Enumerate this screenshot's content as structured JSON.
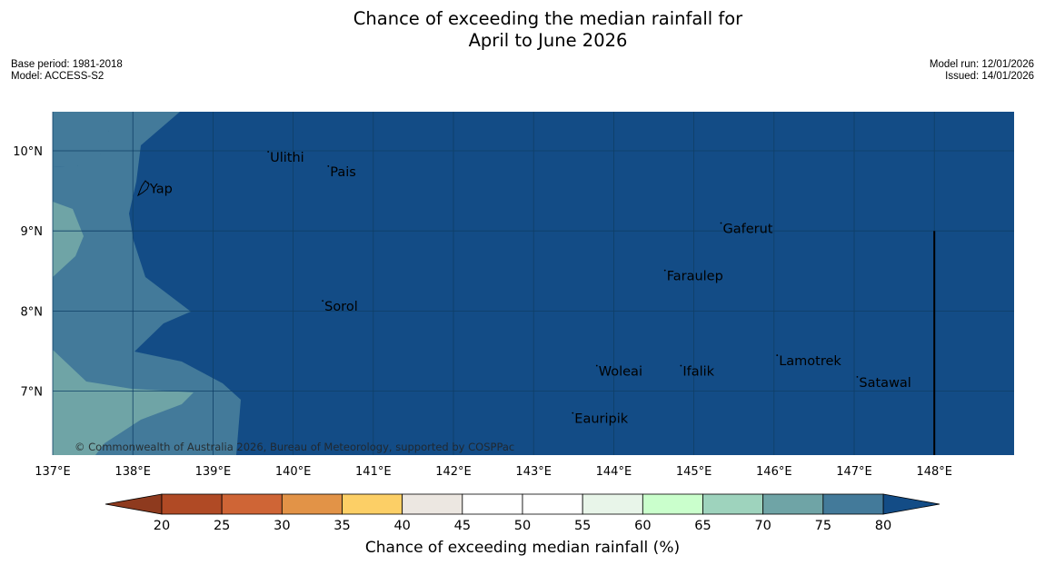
{
  "title_line1": "Chance of exceeding the median rainfall for",
  "title_line2": "April to June 2026",
  "base_period": "Base period: 1981-2018",
  "model": "Model: ACCESS-S2",
  "model_run": "Model run: 12/01/2026",
  "issued": "Issued: 14/01/2026",
  "copyright": "© Commonwealth of Australia 2026, Bureau of Meteorology, supported by COSPPac",
  "map": {
    "lon_range": [
      137,
      149
    ],
    "lat_range": [
      6.2,
      10.5
    ],
    "lon_ticks": [
      {
        "value": 137,
        "label": "137°E"
      },
      {
        "value": 138,
        "label": "138°E"
      },
      {
        "value": 139,
        "label": "139°E"
      },
      {
        "value": 140,
        "label": "140°E"
      },
      {
        "value": 141,
        "label": "141°E"
      },
      {
        "value": 142,
        "label": "142°E"
      },
      {
        "value": 143,
        "label": "143°E"
      },
      {
        "value": 144,
        "label": "144°E"
      },
      {
        "value": 145,
        "label": "145°E"
      },
      {
        "value": 146,
        "label": "146°E"
      },
      {
        "value": 147,
        "label": "147°E"
      },
      {
        "value": 148,
        "label": "148°E"
      }
    ],
    "lat_ticks": [
      {
        "value": 10,
        "label": "10°N"
      },
      {
        "value": 9,
        "label": "9°N"
      },
      {
        "value": 8,
        "label": "8°N"
      },
      {
        "value": 7,
        "label": "7°N"
      }
    ],
    "places": [
      {
        "name": "Ulithi",
        "lon": 139.7,
        "lat": 9.92
      },
      {
        "name": "Pais",
        "lon": 140.45,
        "lat": 9.74
      },
      {
        "name": "Yap",
        "lon": 138.2,
        "lat": 9.53
      },
      {
        "name": "Gaferut",
        "lon": 145.35,
        "lat": 9.03
      },
      {
        "name": "Faraulep",
        "lon": 144.65,
        "lat": 8.44
      },
      {
        "name": "Sorol",
        "lon": 140.38,
        "lat": 8.06
      },
      {
        "name": "Woleai",
        "lon": 143.8,
        "lat": 7.25
      },
      {
        "name": "Ifalik",
        "lon": 144.85,
        "lat": 7.25
      },
      {
        "name": "Lamotrek",
        "lon": 146.05,
        "lat": 7.38
      },
      {
        "name": "Satawal",
        "lon": 147.05,
        "lat": 7.11
      },
      {
        "name": "Eauripik",
        "lon": 143.5,
        "lat": 6.66
      }
    ]
  },
  "colorbar": {
    "label": "Chance of exceeding median rainfall (%)",
    "ticks": [
      "20",
      "25",
      "30",
      "35",
      "40",
      "45",
      "50",
      "55",
      "60",
      "65",
      "70",
      "75",
      "80"
    ],
    "colors": [
      "#b04a25",
      "#cf6536",
      "#e29347",
      "#fccf66",
      "#ece7e1",
      "#ffffff",
      "#ffffff",
      "#e8f5e9",
      "#caffcc",
      "#9ed3bd",
      "#6fa4a6",
      "#437a9a"
    ],
    "low_extend_color": "#8e3a1e",
    "high_extend_color": "#134c86"
  },
  "map_colors": {
    "above_80": "#134c86",
    "band_75_80": "#437a9a",
    "band_70_75": "#6fa4a6",
    "gridline": "#0f3f66",
    "coast": "#000000"
  }
}
